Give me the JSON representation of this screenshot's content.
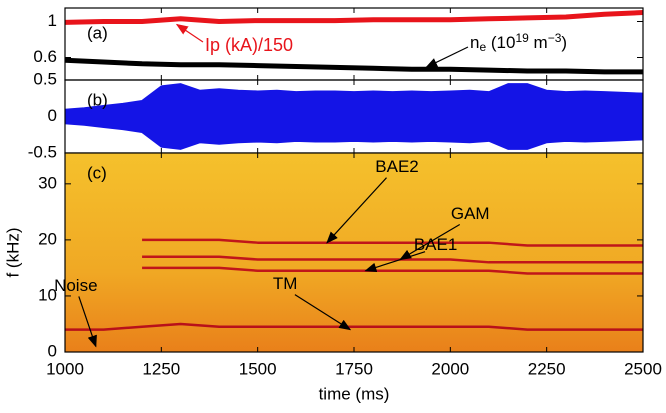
{
  "chart_data": [
    {
      "type": "line",
      "panel_label": "(a)",
      "x": [
        1000,
        1100,
        1200,
        1300,
        1400,
        1500,
        1600,
        1700,
        1800,
        1900,
        2000,
        2100,
        2200,
        2300,
        2400,
        2500
      ],
      "series": [
        {
          "name": "Ip (kA)/150",
          "color": "#e8141b",
          "values": [
            0.99,
            1.0,
            1.0,
            1.03,
            1.0,
            1.01,
            1.01,
            1.01,
            1.02,
            1.02,
            1.02,
            1.03,
            1.04,
            1.05,
            1.08,
            1.1
          ]
        },
        {
          "label_parts": [
            "n",
            "e",
            " (10",
            "19",
            " m",
            "−3",
            ")"
          ],
          "color": "#000000",
          "values": [
            0.57,
            0.55,
            0.53,
            0.52,
            0.52,
            0.51,
            0.5,
            0.49,
            0.48,
            0.47,
            0.47,
            0.46,
            0.45,
            0.45,
            0.44,
            0.44
          ]
        }
      ],
      "annotations": [
        {
          "series": 0,
          "x": 1280,
          "y": 1.0
        },
        {
          "series": 1,
          "x": 1930,
          "y": 0.47
        }
      ],
      "xlim": [
        1000,
        2500
      ],
      "ylim": [
        0.35,
        1.15
      ],
      "yticks": [
        0.6,
        1
      ]
    },
    {
      "type": "envelope",
      "panel_label": "(b)",
      "x": [
        1000,
        1050,
        1100,
        1150,
        1200,
        1250,
        1300,
        1350,
        1400,
        1450,
        1500,
        1550,
        1600,
        1650,
        1700,
        1750,
        1800,
        1850,
        1900,
        1950,
        2000,
        2050,
        2100,
        2150,
        2200,
        2250,
        2300,
        2350,
        2400,
        2450,
        2500
      ],
      "color": "#1414e6",
      "values": [
        0.1,
        0.12,
        0.15,
        0.18,
        0.22,
        0.42,
        0.45,
        0.36,
        0.38,
        0.36,
        0.35,
        0.36,
        0.34,
        0.35,
        0.35,
        0.34,
        0.35,
        0.34,
        0.35,
        0.34,
        0.35,
        0.36,
        0.34,
        0.45,
        0.45,
        0.36,
        0.34,
        0.35,
        0.34,
        0.33,
        0.32
      ],
      "xlim": [
        1000,
        2500
      ],
      "ylim": [
        -0.5,
        0.5
      ],
      "yticks": [
        -0.5,
        0,
        0.5
      ]
    },
    {
      "type": "spectrogram",
      "panel_label": "(c)",
      "x": [
        1000,
        1100,
        1200,
        1300,
        1400,
        1500,
        1600,
        1700,
        1800,
        1900,
        2000,
        2100,
        2200,
        2300,
        2400,
        2500
      ],
      "series": [
        {
          "name": "BAE2",
          "color": "#c0161a",
          "values": [
            null,
            null,
            20,
            20,
            20,
            19.5,
            19.5,
            19.5,
            19.5,
            19.5,
            19.5,
            19.5,
            19,
            19,
            19,
            19
          ]
        },
        {
          "name": "GAM",
          "color": "#c0161a",
          "values": [
            null,
            null,
            17,
            17,
            17,
            16.5,
            16.5,
            16.5,
            16.5,
            16.5,
            16.5,
            16,
            16,
            16,
            16,
            16
          ]
        },
        {
          "name": "BAE1",
          "color": "#c0161a",
          "values": [
            null,
            null,
            15,
            15,
            15,
            14.5,
            14.5,
            14.5,
            14.5,
            14.5,
            14.5,
            14.5,
            14,
            14,
            14,
            14
          ]
        },
        {
          "name": "TM",
          "color": "#b8101a",
          "values": [
            4,
            4,
            4.5,
            5,
            4.5,
            4.5,
            4.5,
            4.5,
            4.5,
            4.5,
            4.5,
            4.5,
            4,
            4,
            4,
            4
          ]
        }
      ],
      "annotations": [
        {
          "text": "Noise",
          "x": 1080,
          "y": 1
        },
        {
          "text": "TM",
          "x": 1740,
          "y": 4
        },
        {
          "text": "BAE2",
          "x": 1680,
          "y": 19.5
        },
        {
          "text": "GAM",
          "x": 1870,
          "y": 16.5
        },
        {
          "text": "BAE1",
          "x": 1780,
          "y": 14.5
        }
      ],
      "xlim": [
        1000,
        2500
      ],
      "ylim": [
        0,
        35.5
      ],
      "yticks": [
        0,
        10,
        20,
        30
      ],
      "xticks": [
        1000,
        1250,
        1500,
        1750,
        2000,
        2250,
        2500
      ],
      "xlabel": "time (ms)",
      "ylabel": "f (kHz)"
    }
  ]
}
